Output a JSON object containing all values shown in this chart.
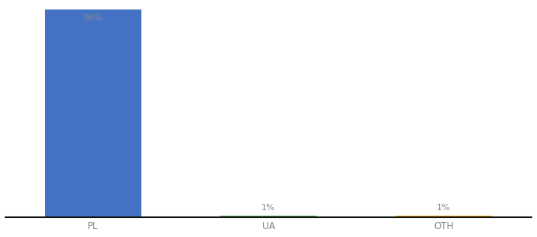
{
  "categories": [
    "PL",
    "UA",
    "OTH"
  ],
  "values": [
    98,
    1,
    1
  ],
  "bar_colors": [
    "#4472c4",
    "#4caf50",
    "#ffa500"
  ],
  "labels": [
    "98%",
    "1%",
    "1%"
  ],
  "ylim": [
    0,
    100
  ],
  "label_color": "#888888",
  "label_fontsize": 8,
  "tick_fontsize": 8.5,
  "tick_color": "#888888",
  "background_color": "#ffffff",
  "bar_width": 0.55,
  "x_positions": [
    1,
    2,
    3
  ],
  "xlim": [
    0.5,
    3.5
  ],
  "bottom_spine_color": "#111111",
  "bottom_spine_lw": 1.5
}
